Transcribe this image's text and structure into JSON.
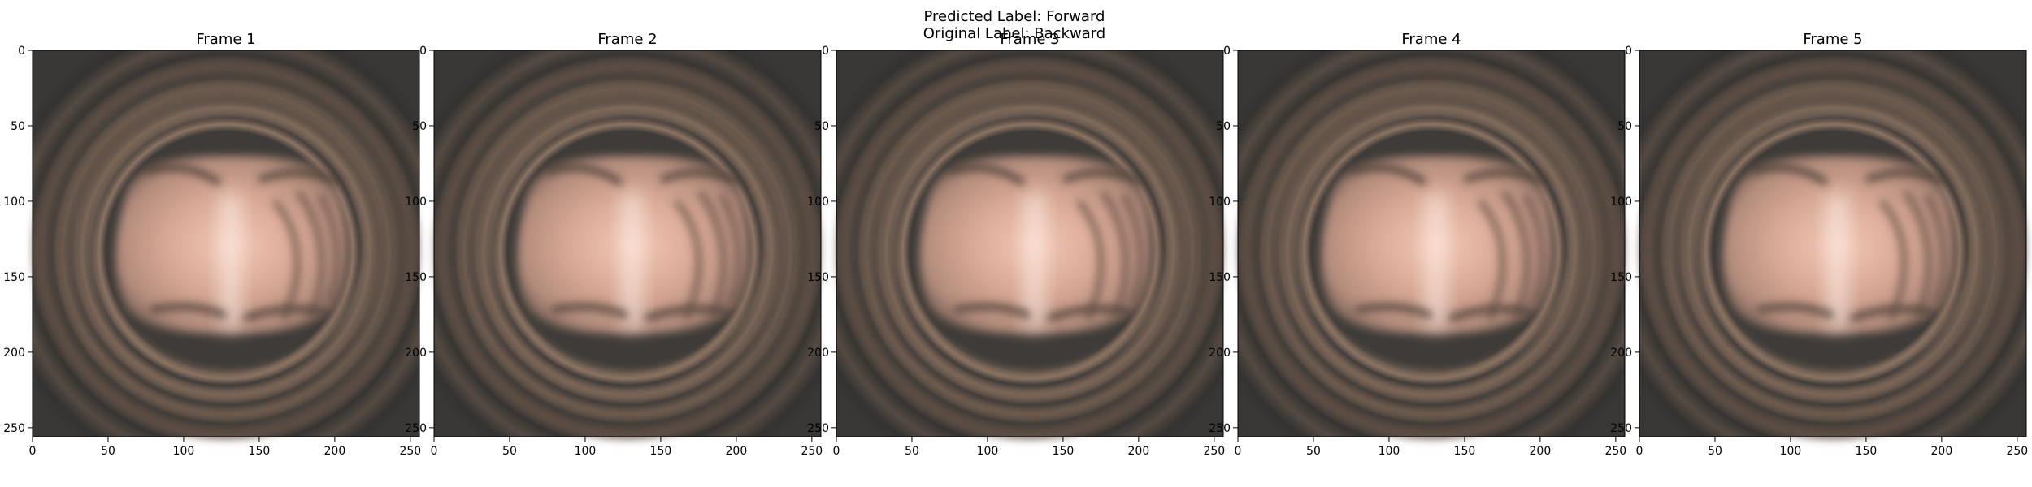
{
  "figure": {
    "suptitle_line1": "Predicted Label: Forward",
    "suptitle_line2": "Original Label: Backward"
  },
  "image": {
    "width": 256,
    "height": 256,
    "description_colors": {
      "center_light": "#f3c9b8",
      "center_mid": "#d9a996",
      "ring_light": "#8c7463",
      "ring_dark": "#3e3b38",
      "background": "#3a3836"
    }
  },
  "axes": {
    "xticks": [
      0,
      50,
      100,
      150,
      200,
      250
    ],
    "yticks": [
      0,
      50,
      100,
      150,
      200,
      250
    ],
    "xlim": [
      0,
      256
    ],
    "ylim": [
      256,
      0
    ]
  },
  "frames": [
    {
      "title": "Frame 1"
    },
    {
      "title": "Frame 2"
    },
    {
      "title": "Frame 3"
    },
    {
      "title": "Frame 4"
    },
    {
      "title": "Frame 5"
    }
  ]
}
